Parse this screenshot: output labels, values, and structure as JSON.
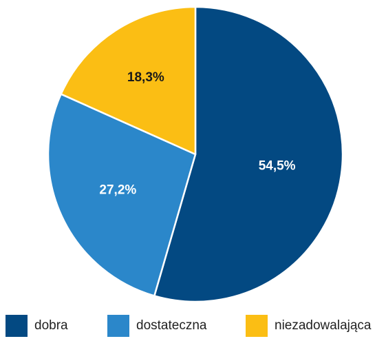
{
  "chart_data": {
    "type": "pie",
    "slices": [
      {
        "name": "dobra",
        "value": 54.5,
        "label": "54,5%",
        "color": "#034982",
        "label_color": "#ffffff"
      },
      {
        "name": "dostateczna",
        "value": 27.2,
        "label": "27,2%",
        "color": "#2b87ca",
        "label_color": "#ffffff"
      },
      {
        "name": "niezadowalająca",
        "value": 18.3,
        "label": "18,3%",
        "color": "#fbbe14",
        "label_color": "#1a1a1a"
      }
    ],
    "start": "12 o'clock",
    "direction": "clockwise",
    "legend_position": "bottom"
  }
}
